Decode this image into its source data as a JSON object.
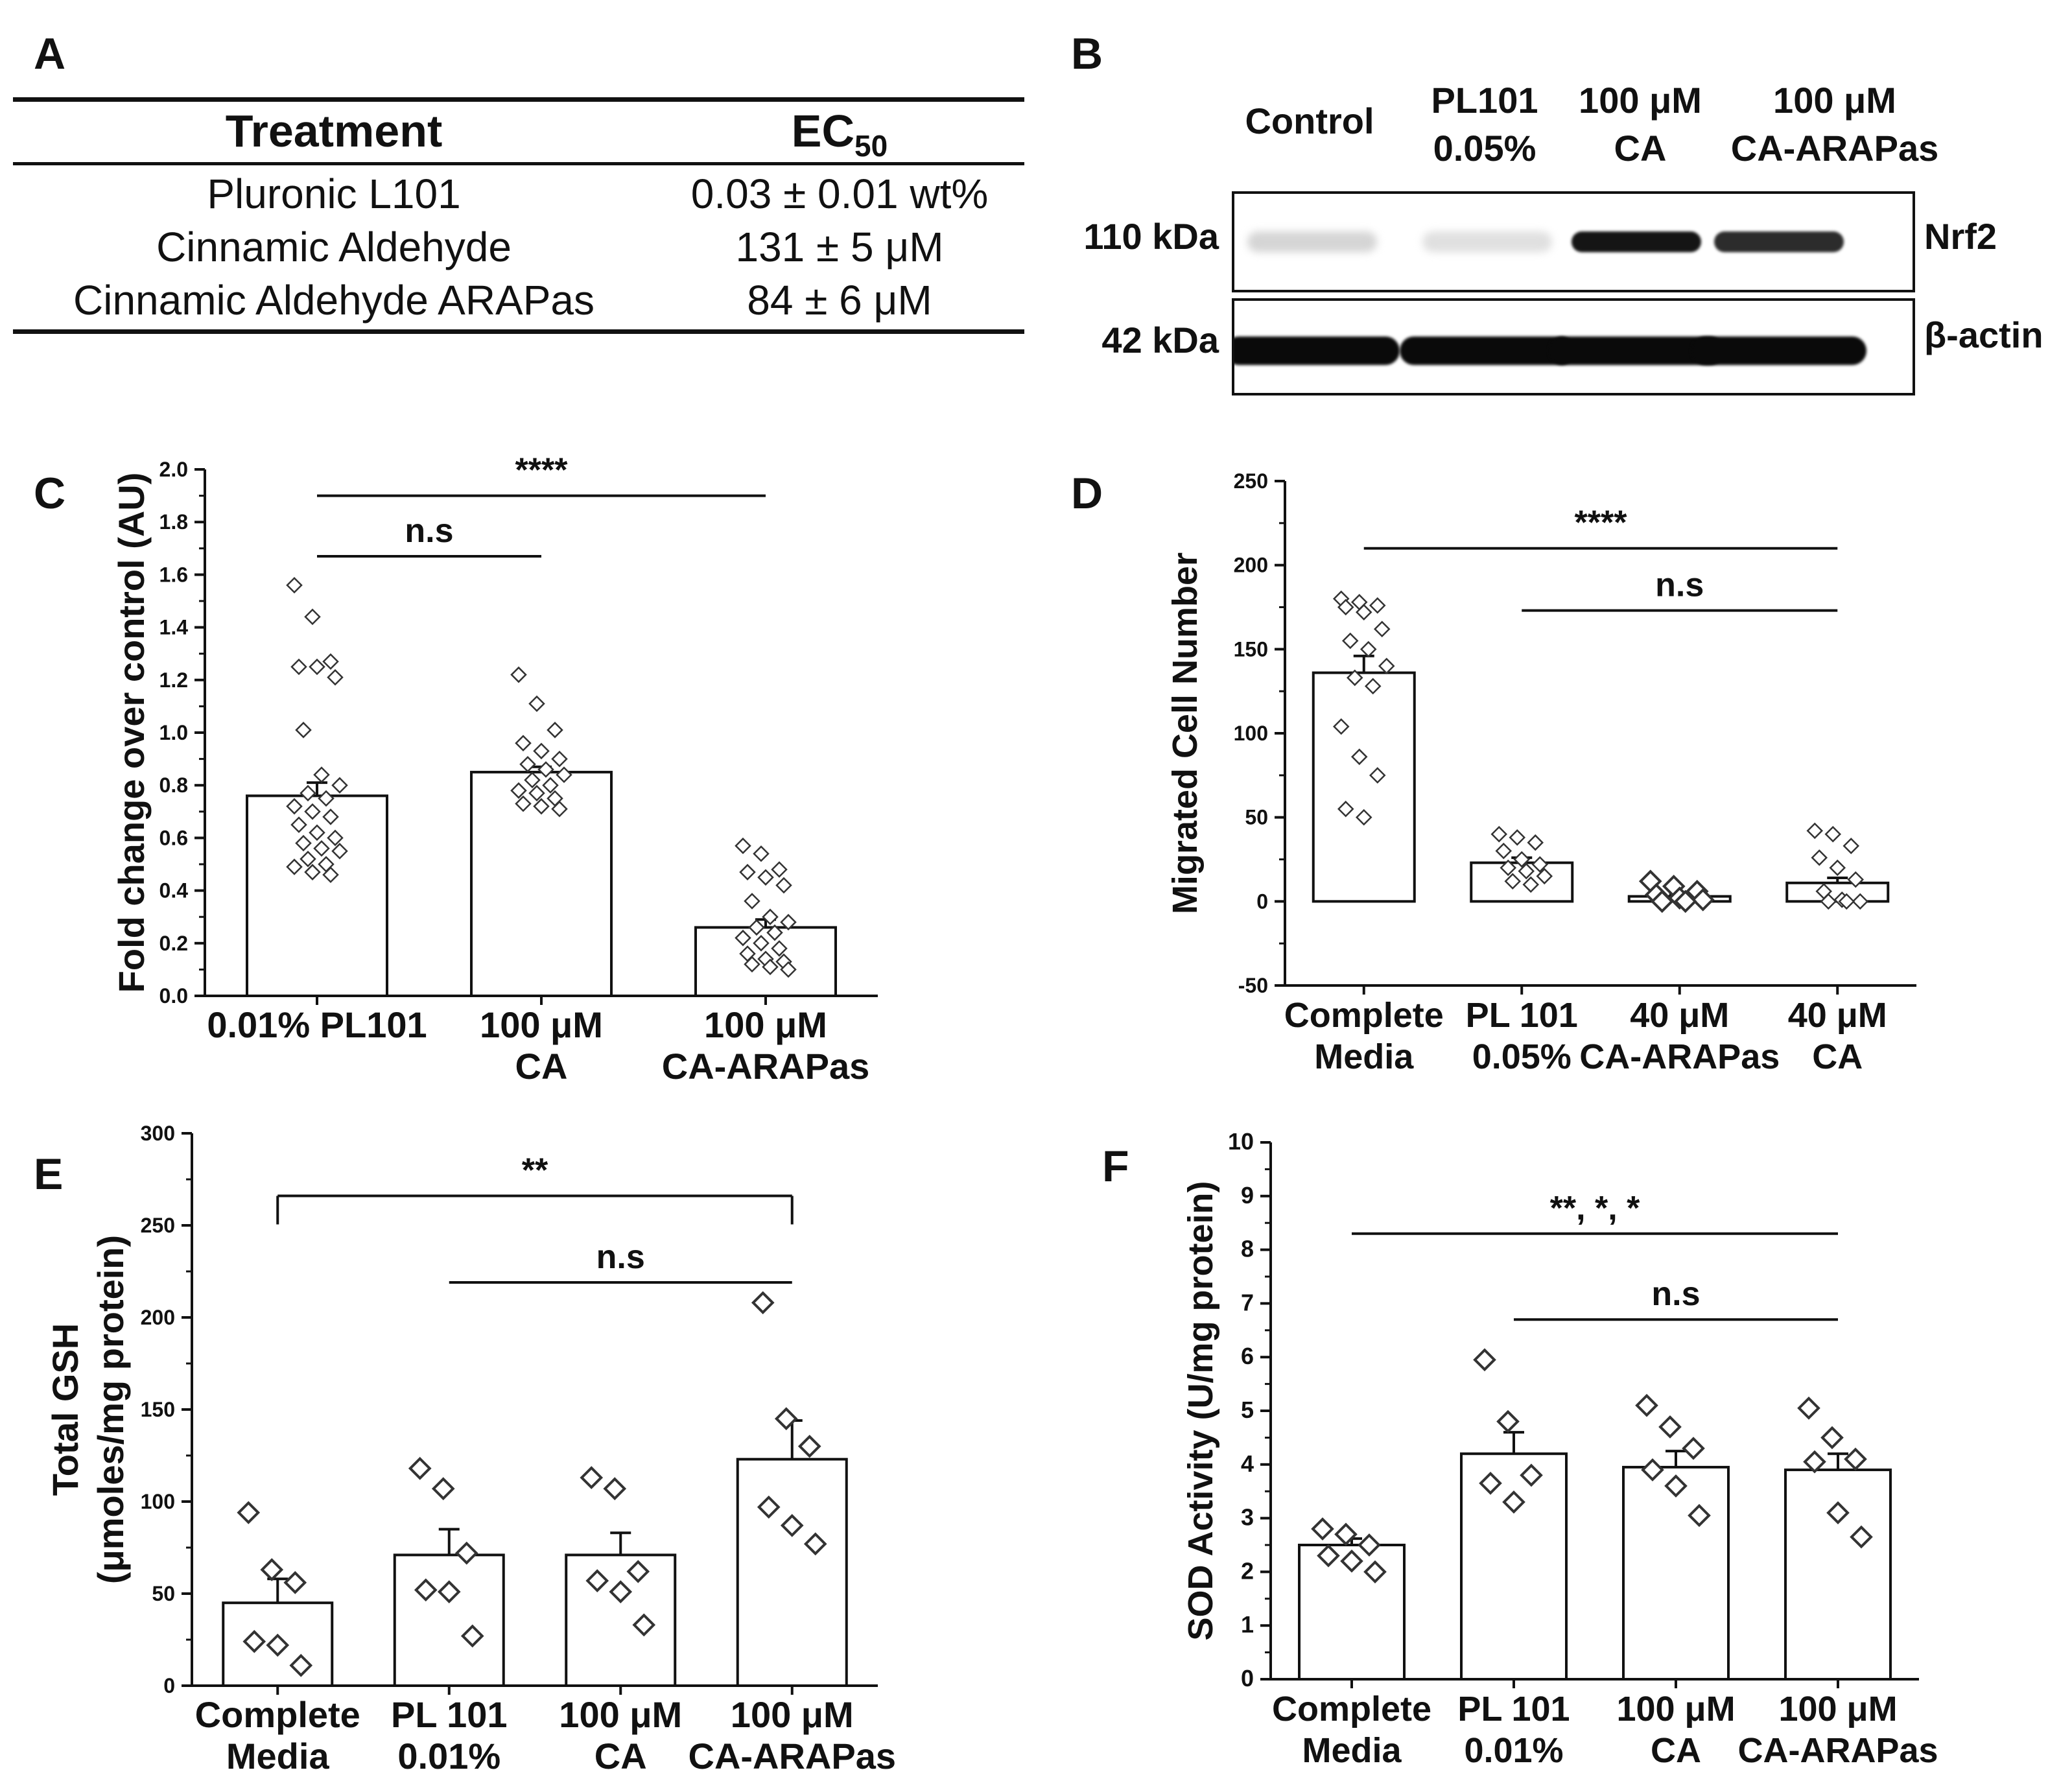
{
  "panels": {
    "a": "A",
    "b": "B",
    "c": "C",
    "d": "D",
    "e": "E",
    "f": "F"
  },
  "table": {
    "headers": [
      "Treatment",
      "EC",
      "50"
    ],
    "rows": [
      {
        "treatment": "Pluronic L101",
        "ec50": "0.03 ± 0.01 wt%"
      },
      {
        "treatment": "Cinnamic Aldehyde",
        "ec50": "131 ± 5 μM"
      },
      {
        "treatment": "Cinnamic Aldehyde ARAPas",
        "ec50": "84 ± 6 μM"
      }
    ]
  },
  "western_blot": {
    "lanes": [
      {
        "line1": "Control",
        "line2": ""
      },
      {
        "line1": "PL101",
        "line2": "0.05%"
      },
      {
        "line1": "100 μM",
        "line2": "CA"
      },
      {
        "line1": "100 μM",
        "line2": "CA-ARAPas"
      }
    ],
    "rows": [
      {
        "size": "110 kDa",
        "protein": "Nrf2",
        "intensity": [
          0.1,
          0.05,
          0.95,
          0.85
        ]
      },
      {
        "size": "42 kDa",
        "protein": "β-actin",
        "intensity": [
          1.0,
          1.0,
          1.0,
          1.0
        ]
      }
    ]
  },
  "chart_data": [
    {
      "panel": "C",
      "type": "bar",
      "categories": [
        [
          "0.01% PL101"
        ],
        [
          "100 μM",
          "CA"
        ],
        [
          "100 μM",
          "CA-ARAPas"
        ]
      ],
      "values": [
        0.76,
        0.85,
        0.26
      ],
      "errors": [
        0.05,
        0.02,
        0.03
      ],
      "points": [
        [
          1.56,
          1.44,
          1.27,
          1.25,
          1.25,
          1.21,
          1.01,
          0.84,
          0.8,
          0.77,
          0.75,
          0.72,
          0.7,
          0.68,
          0.65,
          0.62,
          0.6,
          0.58,
          0.56,
          0.55,
          0.52,
          0.5,
          0.49,
          0.47,
          0.46
        ],
        [
          1.22,
          1.11,
          1.01,
          0.96,
          0.93,
          0.9,
          0.88,
          0.86,
          0.84,
          0.82,
          0.8,
          0.78,
          0.77,
          0.75,
          0.73,
          0.72,
          0.71
        ],
        [
          0.57,
          0.54,
          0.48,
          0.47,
          0.45,
          0.42,
          0.36,
          0.3,
          0.28,
          0.26,
          0.24,
          0.22,
          0.2,
          0.18,
          0.16,
          0.14,
          0.13,
          0.12,
          0.11,
          0.1
        ]
      ],
      "ylabel": "Fold change over control (AU)",
      "ylim": [
        0,
        2
      ],
      "yticks": [
        0.0,
        0.2,
        0.4,
        0.6,
        0.8,
        1.0,
        1.2,
        1.4,
        1.6,
        1.8,
        2.0
      ],
      "tick_decimals": 1,
      "annotations": [
        {
          "text": "****",
          "from": 0,
          "to": 2,
          "y": 1.9
        },
        {
          "text": "n.s",
          "from": 0,
          "to": 1,
          "y": 1.67
        }
      ]
    },
    {
      "panel": "D",
      "type": "bar",
      "categories": [
        [
          "Complete",
          "Media"
        ],
        [
          "PL 101",
          "0.05%"
        ],
        [
          "40 μM",
          "CA-ARAPas"
        ],
        [
          "40 μM",
          "CA"
        ]
      ],
      "values": [
        136,
        23,
        3,
        11
      ],
      "errors": [
        10,
        3,
        1,
        3
      ],
      "points": [
        [
          180,
          178,
          176,
          175,
          172,
          162,
          155,
          150,
          140,
          133,
          128,
          104,
          86,
          75,
          55,
          50
        ],
        [
          40,
          38,
          35,
          30,
          25,
          22,
          20,
          18,
          15,
          12,
          10
        ],
        [
          12,
          9,
          6,
          4,
          2,
          1,
          0,
          0
        ],
        [
          42,
          40,
          33,
          26,
          20,
          13,
          6,
          1,
          0,
          0,
          0
        ]
      ],
      "ylabel": "Migrated Cell Number",
      "ylim": [
        -50,
        250
      ],
      "yticks": [
        -50,
        0,
        50,
        100,
        150,
        200,
        250
      ],
      "tick_decimals": 0,
      "annotations": [
        {
          "text": "****",
          "from": 0,
          "to": 3,
          "y": 210
        },
        {
          "text": "n.s",
          "from": 1,
          "to": 3,
          "y": 173
        }
      ]
    },
    {
      "panel": "E",
      "type": "bar",
      "categories": [
        [
          "Complete",
          "Media"
        ],
        [
          "PL 101",
          "0.01%"
        ],
        [
          "100 μM",
          "CA"
        ],
        [
          "100 μM",
          "CA-ARAPas"
        ]
      ],
      "values": [
        45,
        71,
        71,
        123
      ],
      "errors": [
        13,
        14,
        12,
        21
      ],
      "points": [
        [
          94,
          63,
          56,
          24,
          22,
          11
        ],
        [
          118,
          107,
          72,
          52,
          51,
          27
        ],
        [
          113,
          107,
          62,
          57,
          51,
          33
        ],
        [
          208,
          145,
          130,
          97,
          87,
          77
        ]
      ],
      "ylabel": "Total GSH",
      "ylabel2": "(μmoles/mg protein)",
      "ylim": [
        0,
        300
      ],
      "yticks": [
        0,
        50,
        100,
        150,
        200,
        250,
        300
      ],
      "tick_decimals": 0,
      "annotations": [
        {
          "text": "**",
          "from": 0,
          "to": 3,
          "y": 266,
          "bracket": true
        },
        {
          "text": "n.s",
          "from": 1,
          "to": 3,
          "y": 219
        }
      ]
    },
    {
      "panel": "F",
      "type": "bar",
      "categories": [
        [
          "Complete",
          "Media"
        ],
        [
          "PL 101",
          "0.01%"
        ],
        [
          "100 μM",
          "CA"
        ],
        [
          "100 μM",
          "CA-ARAPas"
        ]
      ],
      "values": [
        2.5,
        4.2,
        3.95,
        3.9
      ],
      "errors": [
        0.12,
        0.4,
        0.3,
        0.3
      ],
      "points": [
        [
          2.8,
          2.7,
          2.5,
          2.3,
          2.2,
          2.0
        ],
        [
          5.95,
          4.8,
          3.8,
          3.65,
          3.3
        ],
        [
          5.1,
          4.7,
          4.3,
          3.9,
          3.6,
          3.05
        ],
        [
          5.05,
          4.5,
          4.1,
          4.05,
          3.1,
          2.65
        ]
      ],
      "ylabel": "SOD Activity (U/mg protein)",
      "ylim": [
        0,
        10
      ],
      "yticks": [
        0,
        1,
        2,
        3,
        4,
        5,
        6,
        7,
        8,
        9,
        10
      ],
      "tick_decimals": 0,
      "annotations": [
        {
          "text": "**, *, *",
          "from": 0,
          "to": 3,
          "y": 8.3
        },
        {
          "text": "n.s",
          "from": 1,
          "to": 3,
          "y": 6.7
        }
      ]
    }
  ]
}
